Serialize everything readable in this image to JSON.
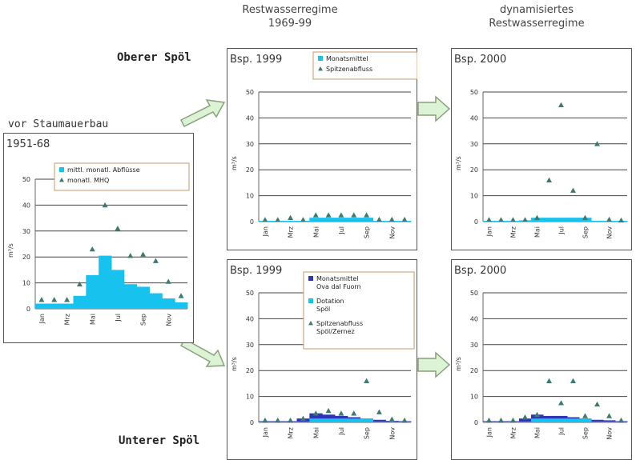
{
  "headers": {
    "col1_line1": "Restwasserregime",
    "col1_line2": "1969-99",
    "col2_line1": "dynamisiertes",
    "col2_line2": "Restwasserregime"
  },
  "sections": {
    "upper": "Oberer Spöl",
    "lower": "Unterer Spöl",
    "before": "vor Staumauerbau"
  },
  "colors": {
    "cyan": "#17c3ee",
    "navy": "#2b35b5",
    "triangle": "#3d7a72",
    "legend_border": "#c9986a",
    "arrow_fill": "#ddf3d6",
    "arrow_stroke": "#88a27a",
    "grid": "#444444"
  },
  "chart_data": [
    {
      "id": "before",
      "type": "bar",
      "label": "1951-68",
      "ylabel": "m³/s",
      "ylim": [
        0,
        50
      ],
      "yticks": [
        0,
        10,
        20,
        30,
        40,
        50
      ],
      "categories": [
        "Jan",
        "Feb",
        "Mrz",
        "Apr",
        "Mai",
        "Jun",
        "Jul",
        "Aug",
        "Sep",
        "Okt",
        "Nov",
        "Dez"
      ],
      "tick_labels": [
        "Jan",
        "Mrz",
        "Mai",
        "Jul",
        "Sep",
        "Nov"
      ],
      "legend": [
        "mittl. monatl. Abflüsse",
        "monatl. MHQ"
      ],
      "series": [
        {
          "name": "mittl. monatl. Abflüsse",
          "kind": "bar",
          "color": "#17c3ee",
          "values": [
            2,
            2,
            2,
            5,
            13,
            20.5,
            15,
            9.5,
            8.5,
            6,
            4,
            2.5
          ]
        },
        {
          "name": "monatl. MHQ",
          "kind": "triangle",
          "values": [
            3.5,
            3.5,
            3.5,
            9.5,
            23,
            40,
            31,
            20.5,
            21,
            18.5,
            10.5,
            5
          ]
        }
      ]
    },
    {
      "id": "upper-1999",
      "type": "bar",
      "label": "Bsp. 1999",
      "ylabel": "m³/s",
      "ylim": [
        0,
        50
      ],
      "yticks": [
        0,
        10,
        20,
        30,
        40,
        50
      ],
      "categories": [
        "Jan",
        "Feb",
        "Mrz",
        "Apr",
        "Mai",
        "Jun",
        "Jul",
        "Aug",
        "Sep",
        "Okt",
        "Nov",
        "Dez"
      ],
      "tick_labels": [
        "Jan",
        "Mrz",
        "Mai",
        "Jul",
        "Sep",
        "Nov"
      ],
      "legend": [
        "Monatsmittel",
        "Spitzenabfluss"
      ],
      "series": [
        {
          "name": "Monatsmittel",
          "kind": "bar",
          "color": "#17c3ee",
          "values": [
            0.3,
            0.3,
            0.3,
            0.3,
            1.5,
            1.5,
            1.5,
            1.5,
            1.5,
            0.3,
            0.3,
            0.3
          ]
        },
        {
          "name": "Spitzenabfluss",
          "kind": "triangle",
          "values": [
            0.7,
            0.7,
            1.5,
            0.7,
            2.5,
            2.5,
            2.5,
            2.5,
            2.5,
            0.8,
            0.8,
            0.8
          ]
        }
      ]
    },
    {
      "id": "upper-2000",
      "type": "bar",
      "label": "Bsp. 2000",
      "ylabel": "m³/s",
      "ylim": [
        0,
        50
      ],
      "yticks": [
        0,
        10,
        20,
        30,
        40,
        50
      ],
      "categories": [
        "Jan",
        "Feb",
        "Mrz",
        "Apr",
        "Mai",
        "Jun",
        "Jul",
        "Aug",
        "Sep",
        "Okt",
        "Nov",
        "Dez"
      ],
      "tick_labels": [
        "Jan",
        "Mrz",
        "Mai",
        "Jul",
        "Sep",
        "Nov"
      ],
      "legend": [],
      "series": [
        {
          "name": "Monatsmittel",
          "kind": "bar",
          "color": "#17c3ee",
          "values": [
            0.3,
            0.3,
            0.3,
            0.5,
            1.5,
            1.5,
            1.5,
            1.5,
            1.5,
            0.3,
            0.3,
            0.3
          ]
        },
        {
          "name": "Spitzenabfluss",
          "kind": "triangle",
          "values": [
            0.7,
            0.7,
            0.7,
            0.7,
            1.5,
            16,
            45,
            12,
            1.5,
            30,
            0.8,
            0.5
          ]
        }
      ]
    },
    {
      "id": "lower-1999",
      "type": "bar",
      "label": "Bsp. 1999",
      "ylabel": "m³/s",
      "ylim": [
        0,
        50
      ],
      "yticks": [
        0,
        10,
        20,
        30,
        40,
        50
      ],
      "categories": [
        "Jan",
        "Feb",
        "Mrz",
        "Apr",
        "Mai",
        "Jun",
        "Jul",
        "Aug",
        "Sep",
        "Okt",
        "Nov",
        "Dez"
      ],
      "tick_labels": [
        "Jan",
        "Mrz",
        "Mai",
        "Jul",
        "Sep",
        "Nov"
      ],
      "legend": [
        "Monatsmittel Ova dal Fuorn",
        "Dotation Spöl",
        "Spitzenabfluss Spöl/Zernez"
      ],
      "series": [
        {
          "name": "Monatsmittel Ova dal Fuorn",
          "kind": "bar",
          "color": "#2b35b5",
          "values": [
            0.5,
            0.5,
            0.5,
            1.5,
            3.5,
            3.0,
            2.5,
            2.0,
            1.5,
            1.0,
            0.6,
            0.5
          ]
        },
        {
          "name": "Dotation Spöl",
          "kind": "bar",
          "color": "#17c3ee",
          "values": [
            0.3,
            0.3,
            0.3,
            0.3,
            1.5,
            1.5,
            1.5,
            1.5,
            1.5,
            0.3,
            0.3,
            0.3
          ]
        },
        {
          "name": "Spitzenabfluss Spöl/Zernez",
          "kind": "triangle",
          "values": [
            0.8,
            0.8,
            0.8,
            1.5,
            3.5,
            4.5,
            3.5,
            3.5,
            16,
            4,
            1.2,
            0.8
          ]
        }
      ]
    },
    {
      "id": "lower-2000",
      "type": "bar",
      "label": "Bsp. 2000",
      "ylabel": "m³/s",
      "ylim": [
        0,
        50
      ],
      "yticks": [
        0,
        10,
        20,
        30,
        40,
        50
      ],
      "categories": [
        "Jan",
        "Feb",
        "Mrz",
        "Apr",
        "Mai",
        "Jun",
        "Jul",
        "Aug",
        "Sep",
        "Okt",
        "Nov",
        "Dez"
      ],
      "tick_labels": [
        "Jan",
        "Mrz",
        "Mai",
        "Jul",
        "Sep",
        "Nov"
      ],
      "legend": [],
      "series": [
        {
          "name": "Monatsmittel Ova dal Fuorn",
          "kind": "bar",
          "color": "#2b35b5",
          "values": [
            0.5,
            0.5,
            0.5,
            1.5,
            3.0,
            2.5,
            2.5,
            2.0,
            1.5,
            1.0,
            0.8,
            0.5
          ]
        },
        {
          "name": "Dotation Spöl",
          "kind": "bar",
          "color": "#17c3ee",
          "values": [
            0.3,
            0.3,
            0.3,
            0.3,
            1.5,
            1.5,
            1.5,
            1.5,
            1.5,
            0.3,
            0.3,
            0.3
          ]
        },
        {
          "name": "Spitzenabfluss Spöl/Zernez",
          "kind": "triangle",
          "values": [
            0.8,
            0.8,
            0.8,
            2,
            3,
            16,
            7.5,
            16,
            2.5,
            7,
            2.5,
            0.8
          ]
        }
      ]
    }
  ]
}
